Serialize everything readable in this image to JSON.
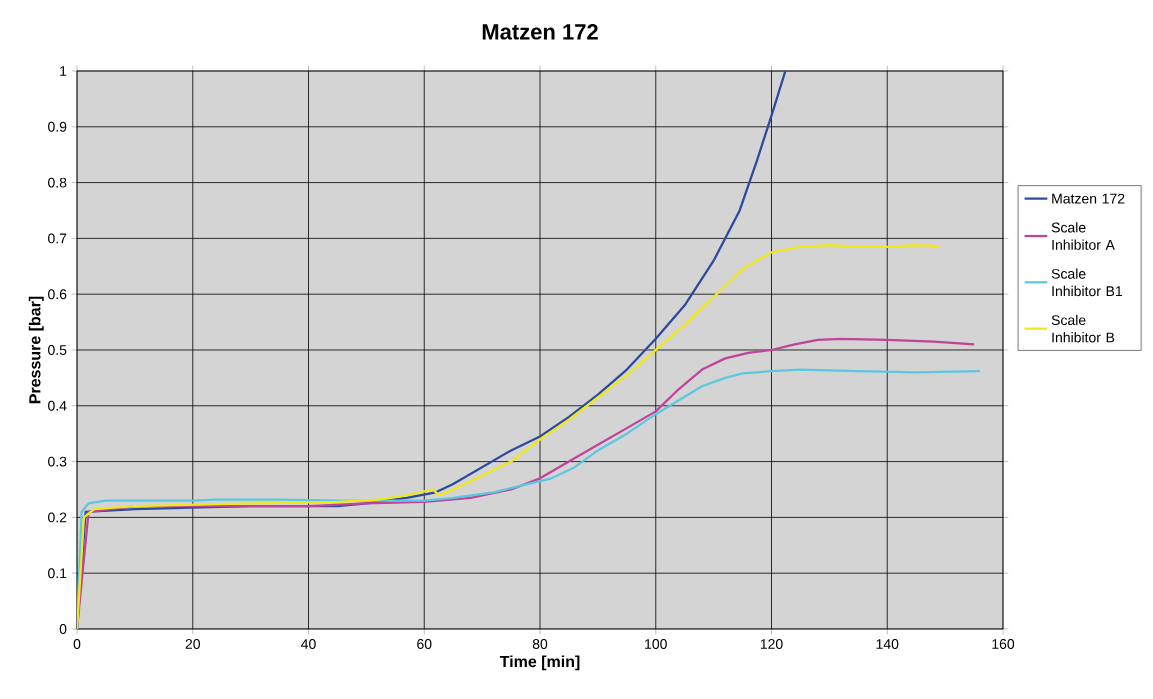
{
  "chart_data": {
    "type": "line",
    "title": "Matzen 172",
    "xlabel": "Time [min]",
    "ylabel": "Pressure [bar]",
    "xlim": [
      0,
      160
    ],
    "xticks": [
      0,
      20,
      40,
      60,
      80,
      100,
      120,
      140,
      160
    ],
    "ylim": [
      0,
      1
    ],
    "yticks": [
      0,
      0.1,
      0.2,
      0.3,
      0.4,
      0.5,
      0.6,
      0.7,
      0.8,
      0.9,
      1
    ],
    "grid": true,
    "legend": "right",
    "marker": "none",
    "line_style": "solid",
    "series": [
      {
        "name": "Matzen 172",
        "color": "#2e4a9e",
        "x": [
          0,
          1.5,
          10,
          30,
          45,
          50,
          57,
          62,
          65,
          70,
          75,
          80,
          85,
          90,
          95,
          100,
          105,
          110,
          114.5,
          117.5,
          120,
          122.4
        ],
        "values": [
          0,
          0.21,
          0.215,
          0.22,
          0.22,
          0.225,
          0.235,
          0.245,
          0.26,
          0.29,
          0.32,
          0.345,
          0.38,
          0.42,
          0.465,
          0.52,
          0.58,
          0.66,
          0.75,
          0.84,
          0.92,
          1.0
        ]
      },
      {
        "name": "Scale Inhibitor A",
        "color": "#c0449a",
        "x": [
          0,
          2,
          10,
          40,
          50,
          60,
          68,
          75,
          80,
          85,
          90,
          95,
          100,
          104,
          108,
          112,
          116,
          120,
          124,
          128,
          132,
          140,
          148,
          155
        ],
        "values": [
          0,
          0.21,
          0.22,
          0.22,
          0.225,
          0.228,
          0.235,
          0.25,
          0.27,
          0.3,
          0.33,
          0.36,
          0.39,
          0.43,
          0.465,
          0.485,
          0.495,
          0.5,
          0.51,
          0.518,
          0.52,
          0.518,
          0.515,
          0.51
        ]
      },
      {
        "name": "Scale Inhibitor B1",
        "color": "#5bc8e0",
        "x": [
          0,
          0.8,
          2,
          5,
          20,
          24,
          35,
          45,
          60,
          65,
          72,
          78,
          82,
          86,
          90,
          95,
          100,
          104,
          108,
          112,
          115,
          120,
          125,
          135,
          145,
          156
        ],
        "values": [
          0,
          0.21,
          0.225,
          0.23,
          0.23,
          0.232,
          0.232,
          0.23,
          0.23,
          0.235,
          0.245,
          0.26,
          0.27,
          0.29,
          0.32,
          0.35,
          0.385,
          0.41,
          0.435,
          0.45,
          0.458,
          0.462,
          0.465,
          0.462,
          0.46,
          0.462
        ]
      },
      {
        "name": "Scale Inhibitor B",
        "color": "#f0e81a",
        "x": [
          0,
          1.2,
          3,
          10,
          30,
          45,
          52,
          57,
          61.5,
          62.5,
          65,
          70,
          75,
          80,
          85,
          90,
          95,
          100,
          105,
          110,
          115,
          120,
          125,
          130,
          135,
          140,
          145,
          149
        ],
        "values": [
          0,
          0.2,
          0.215,
          0.22,
          0.225,
          0.228,
          0.232,
          0.24,
          0.25,
          0.24,
          0.25,
          0.275,
          0.3,
          0.34,
          0.375,
          0.415,
          0.455,
          0.5,
          0.545,
          0.595,
          0.645,
          0.675,
          0.685,
          0.688,
          0.685,
          0.685,
          0.688,
          0.686
        ]
      }
    ]
  }
}
